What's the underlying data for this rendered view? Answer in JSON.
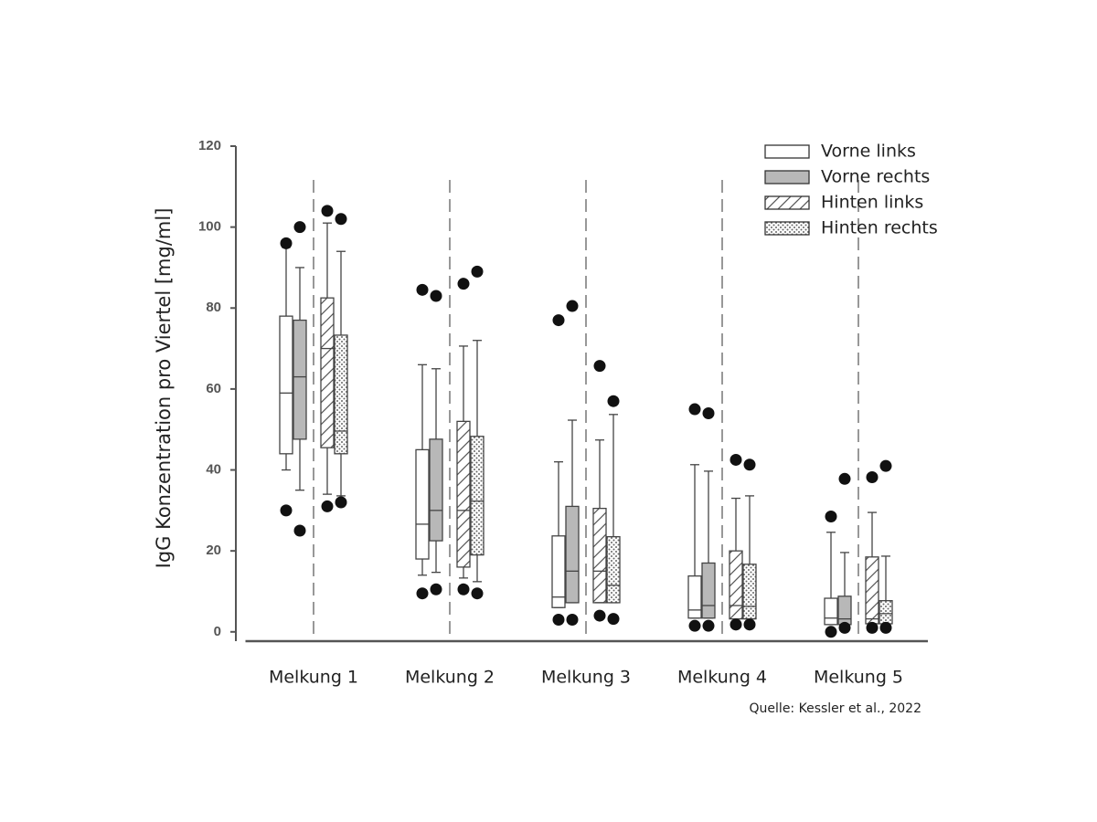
{
  "chart_data": {
    "type": "box",
    "ylabel": "IgG Konzentration pro Viertel [mg/ml]",
    "source": "Quelle: Kessler et al., 2022",
    "categories": [
      "Melkung 1",
      "Melkung 2",
      "Melkung 3",
      "Melkung 4",
      "Melkung 5"
    ],
    "ylim": [
      -2.3,
      120
    ],
    "yticks": [
      0,
      20,
      40,
      60,
      80,
      100,
      120
    ],
    "series": [
      {
        "name": "Vorne links",
        "color": "#ffffff",
        "pattern": "solid",
        "whisker_low": [
          40,
          14,
          6,
          3.4,
          1.8
        ],
        "q1": [
          44,
          18,
          6,
          3.4,
          1.8
        ],
        "median": [
          59,
          26.6,
          8.6,
          5.4,
          3.4
        ],
        "q3": [
          78,
          45,
          23.7,
          13.8,
          8.3
        ],
        "whisker_high": [
          95,
          66,
          42,
          41.3,
          24.6
        ],
        "outliers": [
          [
            96,
            30
          ],
          [
            84.5,
            9.5
          ],
          [
            77,
            3
          ],
          [
            55,
            1.5
          ],
          [
            28.5,
            0
          ]
        ]
      },
      {
        "name": "Vorne rechts",
        "color": "#b8b8b8",
        "pattern": "solid",
        "whisker_low": [
          35,
          14.7,
          7.2,
          3.4,
          1.8
        ],
        "q1": [
          47.6,
          22.5,
          7.2,
          3.4,
          1.8
        ],
        "median": [
          63,
          30,
          15,
          6.5,
          3.2
        ],
        "q3": [
          77,
          47.6,
          31,
          17,
          8.8
        ],
        "whisker_high": [
          90,
          65,
          52.3,
          39.7,
          19.6
        ],
        "outliers": [
          [
            100,
            25
          ],
          [
            83,
            10.5
          ],
          [
            80.5,
            3
          ],
          [
            54,
            1.5
          ],
          [
            37.8,
            1
          ]
        ]
      },
      {
        "name": "Hinten links",
        "color": "#ffffff",
        "pattern": "hatch",
        "whisker_low": [
          34,
          13.3,
          7.2,
          3.2,
          2
        ],
        "q1": [
          45.5,
          16,
          7.2,
          3.2,
          2
        ],
        "median": [
          70,
          30,
          15,
          6.5,
          3.2
        ],
        "q3": [
          82.5,
          52,
          30.5,
          20,
          18.5
        ],
        "whisker_high": [
          101,
          70.6,
          47.4,
          33,
          29.5
        ],
        "outliers": [
          [
            104,
            31
          ],
          [
            86,
            10.5
          ],
          [
            65.7,
            4
          ],
          [
            42.5,
            1.8
          ],
          [
            38.2,
            1
          ]
        ]
      },
      {
        "name": "Hinten rechts",
        "color": "#ffffff",
        "pattern": "dots",
        "whisker_low": [
          33.6,
          12.4,
          7.2,
          3.2,
          2
        ],
        "q1": [
          44,
          19,
          7.2,
          3.2,
          2
        ],
        "median": [
          49.6,
          32.3,
          11.5,
          6.3,
          4.5
        ],
        "q3": [
          73.3,
          48.3,
          23.5,
          16.7,
          7.7
        ],
        "whisker_high": [
          94,
          72,
          53.7,
          33.6,
          18.7
        ],
        "outliers": [
          [
            102,
            32
          ],
          [
            89,
            9.5
          ],
          [
            57,
            3.2
          ],
          [
            41.3,
            1.8
          ],
          [
            41,
            1
          ]
        ]
      }
    ]
  }
}
